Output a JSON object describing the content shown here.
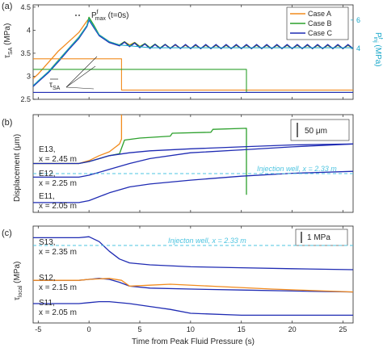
{
  "figure": {
    "x_axis_label": "Time from Peak Fluid Pressure (s)",
    "x_ticks": [
      -5,
      0,
      5,
      10,
      15,
      20,
      25
    ],
    "x_range": [
      -5.5,
      26
    ],
    "colors": {
      "Case A": "#f28b1d",
      "Case B": "#2ca02c",
      "Case C": "#1f2bb3",
      "well": "#4dc4e0",
      "injection": "#16a6c9"
    }
  },
  "panels": [
    {
      "letter": "(a)",
      "ylabel_main": "τ",
      "ylabel_sub": "SA",
      "ylabel_unit": " (MPa)",
      "y_ticks": [
        2.5,
        3,
        3.5,
        4,
        4.5
      ],
      "y_range": [
        2.5,
        4.55
      ],
      "right_label_main": "P",
      "right_label_sup": "f",
      "right_label_sub": "inj",
      "right_label_unit": " (MPa)",
      "right_ticks": [
        4,
        6
      ],
      "pmax_label_main": "P",
      "pmax_label_sup": "f",
      "pmax_label_sub": "max",
      "pmax_label_tail": " (t=0s)",
      "tau_bar_main": "τ",
      "tau_bar_sub": "SA",
      "legend": [
        "Case A",
        "Case B",
        "Case C"
      ]
    },
    {
      "letter": "(b)",
      "ylabel": "Displacement (μm)",
      "scale_bar_label": "50 μm",
      "well_label": "Injection well, x = 2.33 m",
      "labels": [
        {
          "name": "E13,",
          "pos": "x = 2.45 m"
        },
        {
          "name": "E12,",
          "pos": "x = 2.25 m"
        },
        {
          "name": "E11,",
          "pos": "x = 2.05 m"
        }
      ]
    },
    {
      "letter": "(c)",
      "ylabel_main": "τ",
      "ylabel_sub": "local",
      "ylabel_unit": " (MPa)",
      "scale_bar_label": "1 MPa",
      "well_label": "Injecton well, x = 2.33 m",
      "labels": [
        {
          "name": "S13,",
          "pos": "x = 2.35 m"
        },
        {
          "name": "S12,",
          "pos": "x = 2.15 m"
        },
        {
          "name": "S11,",
          "pos": "x = 2.05 m"
        }
      ]
    }
  ],
  "chart_data": [
    {
      "type": "line",
      "title": "",
      "xlabel": "Time from Peak Fluid Pressure (s)",
      "ylabel": "τSA (MPa)",
      "xlim": [
        -5.5,
        26
      ],
      "ylim": [
        2.5,
        4.55
      ],
      "series": [
        {
          "name": "Case A",
          "x": [
            -5.5,
            -5,
            -4,
            -3,
            -2,
            -1,
            -0.2,
            0,
            0.5,
            1,
            2,
            3,
            4,
            5,
            6,
            8,
            10,
            12,
            14,
            16,
            18,
            20,
            22,
            24,
            26
          ],
          "y": [
            2.95,
            3.05,
            3.3,
            3.55,
            3.75,
            3.95,
            4.2,
            4.25,
            4.05,
            3.9,
            3.75,
            3.68,
            3.68,
            3.65,
            3.62,
            3.61,
            3.6,
            3.6,
            3.6,
            3.6,
            3.6,
            3.6,
            3.6,
            3.6,
            3.6
          ]
        },
        {
          "name": "Case B",
          "x": [
            -5.5,
            -5,
            -4,
            -3,
            -2,
            -1,
            -0.2,
            0,
            0.5,
            1,
            2,
            3,
            4,
            5,
            6,
            8,
            10,
            12,
            14,
            16,
            18,
            20,
            22,
            24,
            26
          ],
          "y": [
            2.78,
            2.9,
            3.1,
            3.35,
            3.6,
            3.85,
            4.1,
            4.28,
            4.1,
            3.9,
            3.75,
            3.68,
            3.66,
            3.64,
            3.62,
            3.61,
            3.6,
            3.6,
            3.6,
            3.6,
            3.6,
            3.6,
            3.6,
            3.6,
            3.6
          ]
        },
        {
          "name": "Case C",
          "x": [
            -5.5,
            -5,
            -4,
            -3,
            -2,
            -1,
            -0.2,
            0,
            0.5,
            1,
            2,
            3,
            4,
            5,
            6,
            8,
            10,
            12,
            14,
            16,
            18,
            20,
            22,
            24,
            26
          ],
          "y": [
            2.78,
            2.88,
            3.08,
            3.32,
            3.58,
            3.82,
            4.08,
            4.22,
            4.05,
            3.88,
            3.73,
            3.66,
            3.64,
            3.62,
            3.6,
            3.6,
            3.6,
            3.6,
            3.6,
            3.6,
            3.6,
            3.6,
            3.6,
            3.6,
            3.6
          ]
        },
        {
          "name": "Case A τSA",
          "x": [
            -5.5,
            3.2,
            3.2,
            26
          ],
          "y": [
            3.38,
            3.38,
            2.7,
            2.7
          ]
        },
        {
          "name": "Case B τSA",
          "x": [
            -5.5,
            15.5,
            15.5,
            26
          ],
          "y": [
            3.15,
            3.15,
            2.65,
            2.65
          ]
        },
        {
          "name": "Case C τSA",
          "x": [
            -5.5,
            26
          ],
          "y": [
            2.65,
            2.65
          ]
        }
      ]
    },
    {
      "type": "line",
      "title": "",
      "xlabel": "",
      "ylabel": "Displacement (μm)",
      "xlim": [
        -5.5,
        26
      ],
      "ylim": [
        0,
        100
      ],
      "series": [
        {
          "name": "E13 Case A",
          "x": [
            -5.5,
            -1,
            0,
            1,
            2,
            2.5,
            3,
            3.2,
            3.2
          ],
          "y": [
            50,
            50,
            53,
            58,
            62,
            66,
            70,
            75,
            100
          ]
        },
        {
          "name": "E13 Case B",
          "x": [
            -5.5,
            -1,
            0,
            2,
            3,
            3.5,
            5,
            8,
            8.2,
            12,
            12.2,
            15.5,
            15.5
          ],
          "y": [
            50,
            50,
            52,
            58,
            60,
            74,
            76,
            78,
            81,
            82,
            85,
            86,
            18
          ]
        },
        {
          "name": "E13 Case C",
          "x": [
            -5.5,
            -1,
            0,
            2,
            4,
            6,
            10,
            15,
            20,
            26
          ],
          "y": [
            50,
            50,
            52,
            58,
            61,
            63,
            65,
            67,
            69,
            70
          ]
        },
        {
          "name": "E12 Case C",
          "x": [
            -5.5,
            -1,
            0,
            2,
            4,
            6,
            10,
            15,
            20,
            26
          ],
          "y": [
            36,
            36,
            38,
            44,
            50,
            55,
            61,
            64,
            67,
            70
          ]
        },
        {
          "name": "E11 Case C",
          "x": [
            -5.5,
            -1,
            0,
            2,
            4,
            6,
            10,
            15,
            20,
            26
          ],
          "y": [
            10,
            10,
            12,
            20,
            26,
            29,
            33,
            37,
            40,
            42
          ]
        }
      ]
    },
    {
      "type": "line",
      "title": "",
      "xlabel": "Time from Peak Fluid Pressure (s)",
      "ylabel": "τlocal (MPa)",
      "xlim": [
        -5.5,
        26
      ],
      "ylim": [
        0,
        100
      ],
      "series": [
        {
          "name": "S13 Case C",
          "x": [
            -5.5,
            -1,
            0,
            1,
            2,
            3,
            4,
            6,
            10,
            15,
            20,
            26
          ],
          "y": [
            88,
            88,
            89,
            84,
            74,
            66,
            62,
            60,
            58,
            57,
            56,
            55
          ]
        },
        {
          "name": "S12 Case C",
          "x": [
            -5.5,
            -1,
            0,
            1,
            2,
            3,
            4,
            6,
            10,
            15,
            20,
            26
          ],
          "y": [
            44,
            44,
            45,
            46,
            45,
            42,
            38,
            36,
            35,
            34,
            33,
            32
          ]
        },
        {
          "name": "S12 Case A",
          "x": [
            -5.5,
            -1,
            0,
            2,
            3.2,
            4,
            6,
            8,
            12,
            18,
            26
          ],
          "y": [
            44,
            44,
            45,
            46,
            44,
            38,
            39,
            40,
            38,
            35,
            32
          ]
        },
        {
          "name": "S11 Case C",
          "x": [
            -5.5,
            -1,
            0,
            1,
            2,
            4,
            6,
            8,
            10,
            15,
            20,
            26
          ],
          "y": [
            20,
            20,
            21,
            22,
            22,
            20,
            17,
            14,
            10,
            8,
            8,
            8
          ]
        }
      ]
    }
  ]
}
